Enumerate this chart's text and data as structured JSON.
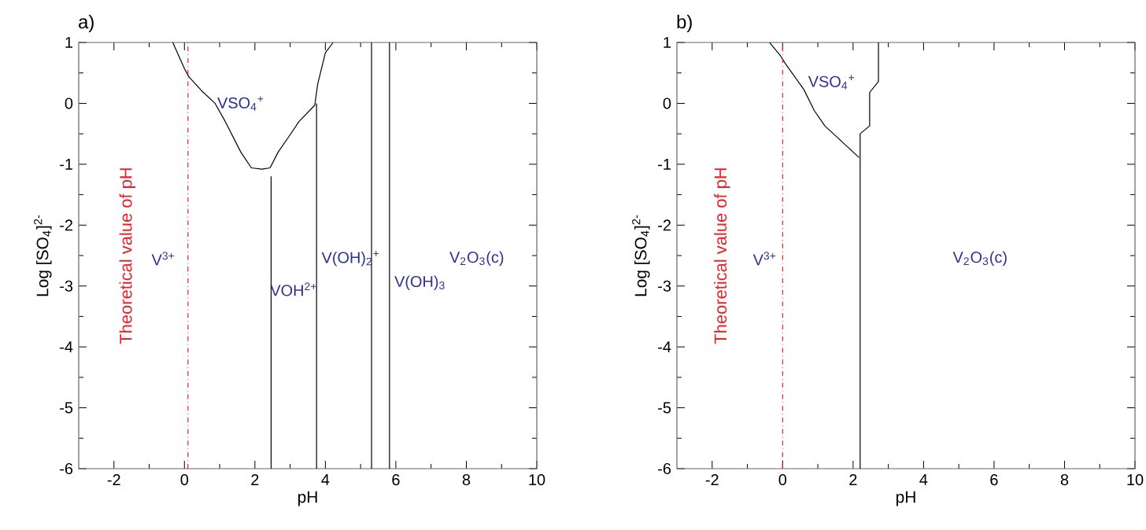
{
  "chart_data": [
    {
      "type": "line",
      "title": "a)",
      "xlabel": "pH",
      "ylabel": "Log [SO$_{4}$]$^{2-}$",
      "xlim": [
        -3,
        10
      ],
      "ylim": [
        -6,
        1
      ],
      "xticks": [
        -2,
        0,
        2,
        4,
        6,
        8,
        10
      ],
      "yticks": [
        -6,
        -5,
        -4,
        -3,
        -2,
        -1,
        0,
        1
      ],
      "series": [
        {
          "color": "#000000",
          "x": [
            -0.33,
            0,
            0.12,
            0.5,
            0.87,
            1.16,
            1.6,
            1.9,
            2.2,
            2.43
          ],
          "values": [
            1,
            0.57,
            0.44,
            0.2,
            0,
            -0.3,
            -0.8,
            -1.06,
            -1.08,
            -1.06
          ]
        },
        {
          "color": "#000000",
          "x": [
            2.43,
            2.66,
            2.96,
            3.25,
            3.7,
            3.78,
            4.0,
            4.22
          ],
          "values": [
            -1.06,
            -0.8,
            -0.55,
            -0.3,
            -0.03,
            0.31,
            0.83,
            1
          ]
        },
        {
          "color": "#000000",
          "x": [
            2.46,
            2.46
          ],
          "values": [
            -1.2,
            -6
          ]
        },
        {
          "color": "#000000",
          "x": [
            3.75,
            3.75
          ],
          "values": [
            0,
            -6
          ]
        },
        {
          "color": "#000000",
          "x": [
            5.31,
            5.31
          ],
          "values": [
            1,
            -6
          ]
        },
        {
          "color": "#000000",
          "x": [
            5.82,
            5.82
          ],
          "values": [
            1,
            -6
          ]
        }
      ],
      "ref_lines": [
        {
          "axis": "x",
          "value": 0.1,
          "label": "Theoretical value of pH",
          "color": "#e8202a",
          "line_style": "dashdot"
        }
      ],
      "annotations": [
        "VSO$_{4}$$^{+}$",
        "V$^{3+}$",
        "VOH$^{2+}$",
        "V(OH)$_{2}$$^{+}$",
        "V(OH)$_{3}$",
        "V$_{2}$O$_{3}$(c)"
      ]
    },
    {
      "type": "line",
      "title": "b)",
      "xlabel": "pH",
      "ylabel": "Log [SO$_{4}$]$^{2-}$",
      "xlim": [
        -3,
        10
      ],
      "ylim": [
        -6,
        1
      ],
      "xticks": [
        -2,
        0,
        2,
        4,
        6,
        8,
        10
      ],
      "yticks": [
        -6,
        -5,
        -4,
        -3,
        -2,
        -1,
        0,
        1
      ],
      "series": [
        {
          "color": "#000000",
          "x": [
            -0.37,
            -0.07,
            0.07,
            0.6,
            0.9,
            1.2,
            2.17
          ],
          "values": [
            1,
            0.79,
            0.66,
            0.23,
            -0.12,
            -0.37,
            -0.89
          ]
        },
        {
          "color": "#000000",
          "x": [
            2.2,
            2.2,
            2.47,
            2.47,
            2.72,
            2.72
          ],
          "values": [
            -6,
            -0.5,
            -0.37,
            0.18,
            0.36,
            1
          ]
        }
      ],
      "ref_lines": [
        {
          "axis": "x",
          "value": 0,
          "label": "Theoretical value of pH",
          "color": "#e8202a",
          "line_style": "dashdot"
        }
      ],
      "annotations": [
        "VSO$_{4}$$^{+}$",
        "V$^{3+}$",
        "V$_{2}$O$_{3}$(c)"
      ]
    }
  ]
}
